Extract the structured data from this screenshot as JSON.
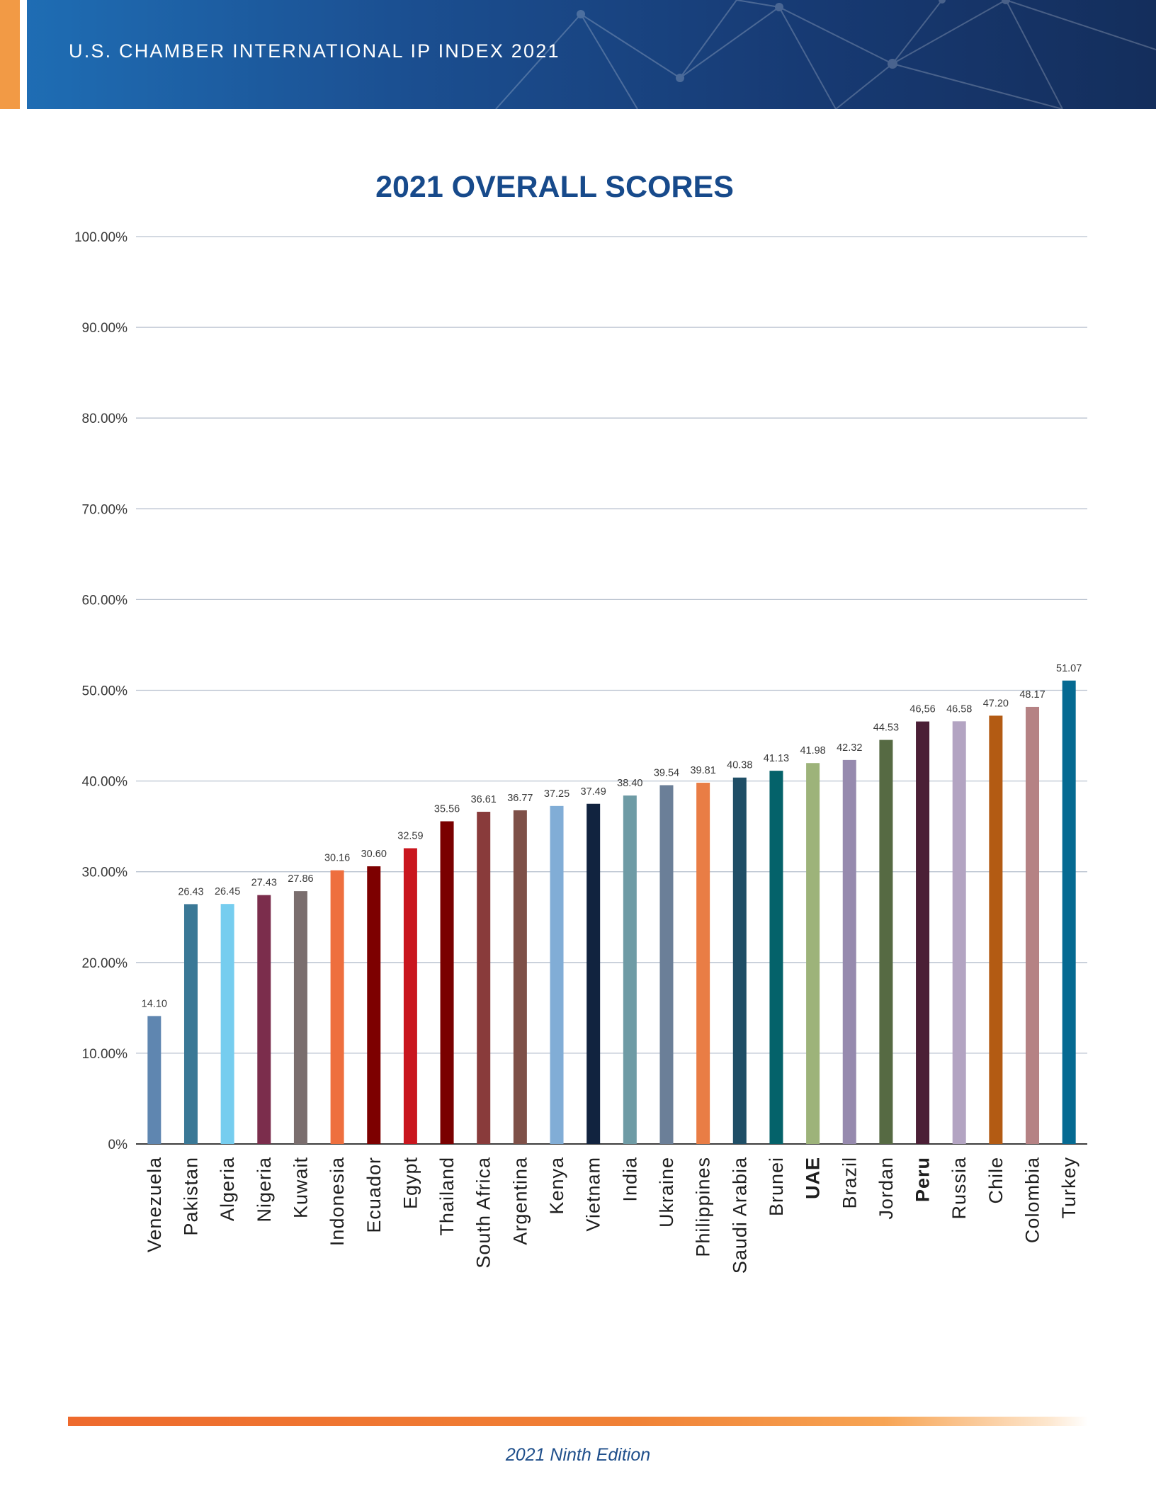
{
  "header": {
    "title": "U.S. CHAMBER INTERNATIONAL IP INDEX 2021"
  },
  "footer": {
    "edition": "2021 Ninth Edition"
  },
  "colors": {
    "header_blue": "#1b4f91",
    "header_accent_orange": "#f29a45",
    "title_blue": "#174a8b",
    "gridline": "#b9c2cf",
    "footer_orange": "#ee6a2d"
  },
  "chart_data": {
    "type": "bar",
    "title": "2021 OVERALL SCORES",
    "xlabel": "",
    "ylabel": "",
    "ylim": [
      0,
      100
    ],
    "grid": true,
    "legend": "none",
    "y_ticks": [
      "0%",
      "10.00%",
      "20.00%",
      "30.00%",
      "40.00%",
      "50.00%",
      "60.00%",
      "70.00%",
      "80.00%",
      "90.00%",
      "100.00%"
    ],
    "y_tick_values": [
      0,
      10,
      20,
      30,
      40,
      50,
      60,
      70,
      80,
      90,
      100
    ],
    "categories": [
      "Venezuela",
      "Pakistan",
      "Algeria",
      "Nigeria",
      "Kuwait",
      "Indonesia",
      "Ecuador",
      "Egypt",
      "Thailand",
      "South Africa",
      "Argentina",
      "Kenya",
      "Vietnam",
      "India",
      "Ukraine",
      "Philippines",
      "Saudi Arabia",
      "Brunei",
      "UAE",
      "Brazil",
      "Jordan",
      "Peru",
      "Russia",
      "Chile",
      "Colombia",
      "Turkey"
    ],
    "bold_categories": [
      "UAE",
      "Peru"
    ],
    "values": [
      14.1,
      26.43,
      26.45,
      27.43,
      27.86,
      30.16,
      30.6,
      32.59,
      35.56,
      36.61,
      36.77,
      37.25,
      37.49,
      38.4,
      39.54,
      39.81,
      40.38,
      41.13,
      41.98,
      42.32,
      44.53,
      46.56,
      46.58,
      47.2,
      48.17,
      51.07
    ],
    "data_labels": [
      "14.10",
      "26.43",
      "26.45",
      "27.43",
      "27.86",
      "30.16",
      "30.60",
      "32.59",
      "35.56",
      "36.61",
      "36.77",
      "37.25",
      "37.49",
      "38.40",
      "39.54",
      "39.81",
      "40.38",
      "41.13",
      "41.98",
      "42.32",
      "44.53",
      "46,56",
      "46.58",
      "47.20",
      "48.17",
      "51.07"
    ],
    "bar_colors": [
      "#5f86b0",
      "#3a7896",
      "#76cdef",
      "#7b2d4c",
      "#7a6e6e",
      "#ee6f3e",
      "#7d0000",
      "#c9161e",
      "#7a0000",
      "#893b3b",
      "#7e5048",
      "#81add6",
      "#11233f",
      "#6e9ba5",
      "#6b7f98",
      "#e97d45",
      "#1f4e66",
      "#04626a",
      "#9db37a",
      "#968aae",
      "#566a43",
      "#4b1f36",
      "#b3a4c2",
      "#b35b13",
      "#b58284",
      "#056a92"
    ]
  }
}
